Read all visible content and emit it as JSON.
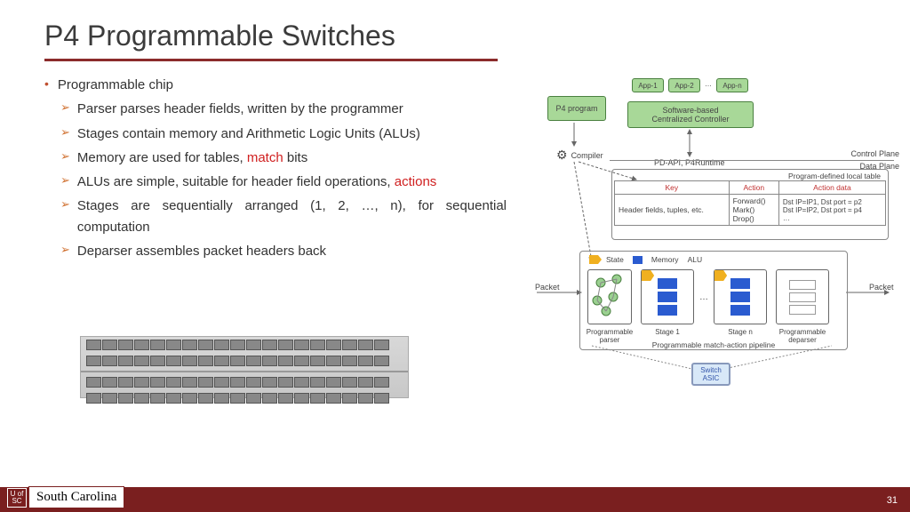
{
  "title": "P4 Programmable Switches",
  "main_bullet": "Programmable chip",
  "sub_bullets": [
    {
      "pre": "Parser parses header fields, written by the programmer",
      "hl": "",
      "post": ""
    },
    {
      "pre": "Stages contain memory and Arithmetic Logic Units (ALUs)",
      "hl": "",
      "post": ""
    },
    {
      "pre": "Memory are used for tables, ",
      "hl": "match",
      "post": " bits"
    },
    {
      "pre": "ALUs are simple, suitable for header field operations, ",
      "hl": "actions",
      "post": ""
    },
    {
      "pre": "Stages are sequentially arranged (1, 2, …, n), for sequential computation",
      "hl": "",
      "post": ""
    },
    {
      "pre": "Deparser assembles packet headers back",
      "hl": "",
      "post": ""
    }
  ],
  "diagram": {
    "p4_program": "P4 program",
    "apps": [
      "App-1",
      "App-2",
      "…",
      "App-n"
    ],
    "controller": "Software-based\nCentralized Controller",
    "compiler": "Compiler",
    "pd_api": "PD-API, P4Runtime",
    "control_plane": "Control Plane",
    "data_plane": "Data Plane",
    "table_title": "Program-defined local table",
    "table_headers": [
      "Key",
      "Action",
      "Action data"
    ],
    "table_row": [
      "Header fields, tuples, etc.",
      "Forward()\nMark()\nDrop()",
      "Dst IP=IP1, Dst port = p2\nDst IP=IP2, Dst port = p4\n…"
    ],
    "state": "State",
    "memory": "Memory",
    "alu": "ALU",
    "packet_in": "Packet",
    "packet_out": "Packet",
    "parser": "Programmable\nparser",
    "stage1": "Stage 1",
    "stagen": "Stage n",
    "deparser": "Programmable\ndeparser",
    "pipeline": "Programmable match-action pipeline",
    "asic": "Switch\nASIC",
    "colors": {
      "green": "#a8d898",
      "green_border": "#4a8040",
      "state_circle": "#9ad090",
      "memory_rect": "#2a5bd0",
      "alu_shape": "#f0b020",
      "rule_red": "#8b2c2c",
      "bullet_orange": "#c05030"
    }
  },
  "footer": {
    "logo_sq": "U of\nSC",
    "logo_text": "South Carolina",
    "page": "31"
  }
}
